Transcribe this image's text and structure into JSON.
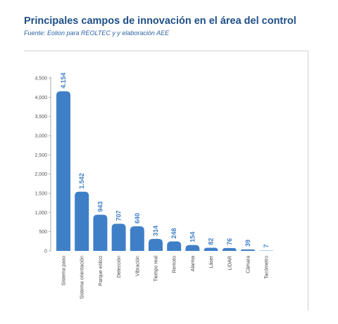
{
  "header": {
    "title": "Principales campos de innovación en el área del control",
    "subtitle": "Fuente: Eolion para REOLTEC y y elaboración AEE"
  },
  "colors": {
    "bar": "#3f7fc7",
    "title": "#1f4f86",
    "subtitle": "#2e64a6",
    "axis": "#999999"
  },
  "chart_data": {
    "type": "bar",
    "title": "Principales campos de innovación en el área del control",
    "xlabel": "",
    "ylabel": "",
    "categories": [
      "Sistema paso",
      "Sistema orientación",
      "Parque eólico",
      "Detección",
      "Vibración",
      "Tiempo real",
      "Remoto",
      "Alarma",
      "Láser",
      "LIDAR",
      "Cámara",
      "Tacómetro"
    ],
    "values": [
      4154,
      1542,
      943,
      707,
      640,
      314,
      248,
      154,
      82,
      76,
      39,
      7
    ],
    "value_labels": [
      "4.154",
      "1.542",
      "943",
      "707",
      "640",
      "314",
      "248",
      "154",
      "82",
      "76",
      "39",
      "7"
    ],
    "ylim": [
      0,
      4500
    ],
    "yticks": [
      0,
      500,
      1000,
      1500,
      2000,
      2500,
      3000,
      3500,
      4000,
      4500
    ],
    "ytick_labels": [
      "0",
      "500",
      "1,000",
      "1,500",
      "2,000",
      "2,500",
      "3,000",
      "3,500",
      "4,000",
      "4,500"
    ],
    "grid": false,
    "legend": "none"
  }
}
